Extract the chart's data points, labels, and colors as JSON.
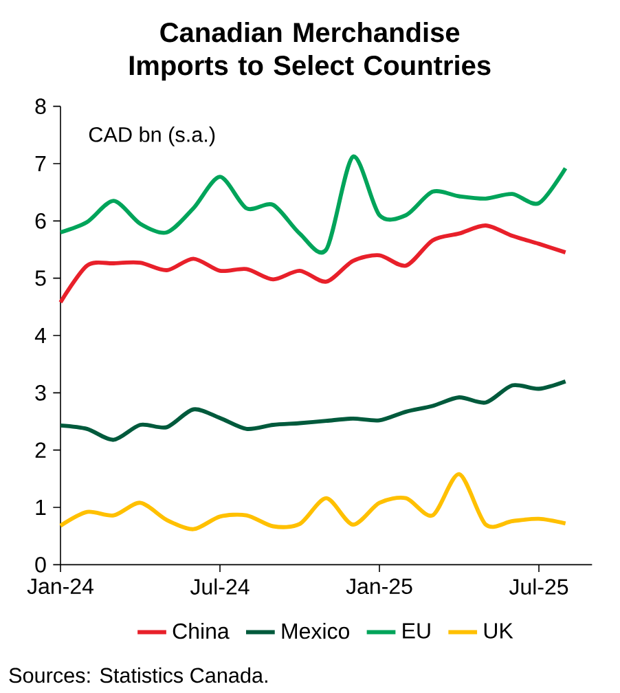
{
  "chart_data": {
    "type": "line",
    "title": "Canadian Merchandise Imports to Select Countries",
    "ylabel": "CAD bn (s.a.)",
    "x": [
      "2024-01",
      "2024-02",
      "2024-03",
      "2024-04",
      "2024-05",
      "2024-06",
      "2024-07",
      "2024-08",
      "2024-09",
      "2024-10",
      "2024-11",
      "2024-12",
      "2025-01",
      "2025-02",
      "2025-03",
      "2025-04",
      "2025-05",
      "2025-06",
      "2025-07",
      "2025-08"
    ],
    "series": [
      {
        "name": "China",
        "color": "#e8202a",
        "values": [
          4.58,
          5.22,
          5.26,
          5.27,
          5.14,
          5.34,
          5.13,
          5.16,
          4.98,
          5.13,
          4.94,
          5.3,
          5.4,
          5.22,
          5.66,
          5.78,
          5.92,
          5.74,
          5.6,
          5.45
        ]
      },
      {
        "name": "Mexico",
        "color": "#005a3c",
        "values": [
          2.43,
          2.37,
          2.18,
          2.44,
          2.4,
          2.71,
          2.56,
          2.37,
          2.44,
          2.47,
          2.51,
          2.55,
          2.52,
          2.67,
          2.77,
          2.92,
          2.83,
          3.13,
          3.07,
          3.2
        ]
      },
      {
        "name": "EU",
        "color": "#00a45a",
        "values": [
          5.8,
          5.98,
          6.35,
          5.95,
          5.8,
          6.22,
          6.77,
          6.22,
          6.28,
          5.78,
          5.5,
          7.12,
          6.1,
          6.1,
          6.51,
          6.43,
          6.39,
          6.47,
          6.31,
          6.92
        ]
      },
      {
        "name": "UK",
        "color": "#ffc000",
        "values": [
          0.68,
          0.92,
          0.86,
          1.08,
          0.78,
          0.62,
          0.84,
          0.86,
          0.67,
          0.71,
          1.16,
          0.7,
          1.08,
          1.16,
          0.86,
          1.58,
          0.7,
          0.76,
          0.8,
          0.72
        ]
      }
    ],
    "xlim": [
      "2024-01",
      "2025-09"
    ],
    "xticks": [
      {
        "value": "2024-01",
        "label": "Jan-24"
      },
      {
        "value": "2024-07",
        "label": "Jul-24"
      },
      {
        "value": "2025-01",
        "label": "Jan-25"
      },
      {
        "value": "2025-07",
        "label": "Jul-25"
      }
    ],
    "ylim": [
      0,
      8
    ],
    "yticks": [
      0,
      1,
      2,
      3,
      4,
      5,
      6,
      7,
      8
    ],
    "grid": false,
    "legend": "bottom",
    "line_style": "solid",
    "marker": "none",
    "annotations": [
      "Sources: Statistics Canada."
    ]
  }
}
